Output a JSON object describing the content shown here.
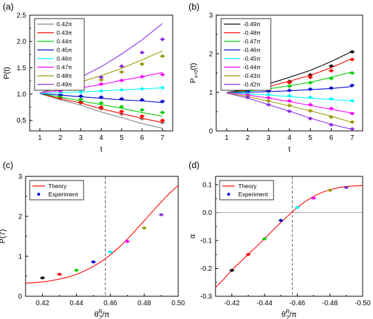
{
  "chart_data": [
    {
      "type": "line",
      "panel_label": "(a)",
      "xlabel": "t",
      "ylabel": "P(t)",
      "xlim": [
        0.5,
        7.5
      ],
      "ylim": [
        0.3,
        2.5
      ],
      "xticks": [
        "1",
        "2",
        "3",
        "4",
        "5",
        "6",
        "7"
      ],
      "yticks": [
        "0.5",
        "1.0",
        "1.5",
        "2.0",
        "2.5"
      ],
      "legend_position": "top-left",
      "x": [
        1,
        2,
        3,
        4,
        5,
        6,
        7
      ],
      "series": [
        {
          "name": "0.42π",
          "color": "#7f7f7f",
          "values": [
            1.01,
            0.89,
            0.79,
            0.66,
            0.55,
            0.44,
            0.35
          ],
          "points": [
            1.01,
            0.92,
            0.83,
            0.72,
            0.62,
            0.53,
            0.46
          ]
        },
        {
          "name": "0.43π",
          "color": "#ff0000",
          "values": [
            1.01,
            0.91,
            0.83,
            0.72,
            0.63,
            0.54,
            0.46
          ],
          "points": [
            1.01,
            0.93,
            0.85,
            0.75,
            0.67,
            0.58,
            0.5
          ]
        },
        {
          "name": "0.44π",
          "color": "#00cc00",
          "values": [
            1.01,
            0.94,
            0.87,
            0.8,
            0.73,
            0.65,
            0.58
          ],
          "points": [
            1.01,
            0.96,
            0.9,
            0.83,
            0.76,
            0.7,
            0.65
          ]
        },
        {
          "name": "0.45π",
          "color": "#0000cc",
          "values": [
            1.01,
            0.98,
            0.95,
            0.92,
            0.89,
            0.87,
            0.84
          ],
          "points": [
            1.01,
            0.99,
            0.96,
            0.94,
            0.91,
            0.89,
            0.86
          ]
        },
        {
          "name": "0.46π",
          "color": "#00ffff",
          "values": [
            1.01,
            1.03,
            1.04,
            1.06,
            1.08,
            1.1,
            1.12
          ],
          "points": [
            1.01,
            1.03,
            1.04,
            1.06,
            1.08,
            1.1,
            1.12
          ]
        },
        {
          "name": "0.47π",
          "color": "#ff00ff",
          "values": [
            1.02,
            1.07,
            1.12,
            1.18,
            1.26,
            1.33,
            1.41
          ],
          "points": [
            1.02,
            1.06,
            1.13,
            1.19,
            1.26,
            1.33,
            1.37
          ]
        },
        {
          "name": "0.48π",
          "color": "#999900",
          "values": [
            1.02,
            1.12,
            1.23,
            1.35,
            1.49,
            1.65,
            1.82
          ],
          "points": [
            1.02,
            1.1,
            1.18,
            1.27,
            1.42,
            1.57,
            1.72
          ]
        },
        {
          "name": "0.49π",
          "color": "#8a2be2",
          "values": [
            1.02,
            1.15,
            1.32,
            1.52,
            1.76,
            2.03,
            2.34
          ],
          "points": [
            1.02,
            1.1,
            1.2,
            1.32,
            1.53,
            1.79,
            2.04
          ]
        }
      ]
    },
    {
      "type": "line",
      "panel_label": "(b)",
      "xlabel": "t",
      "ylabel": "P",
      "ylabel_sub": "x=0",
      "ylabel_suffix": "(t)",
      "xlim": [
        0.5,
        7.5
      ],
      "ylim": [
        0,
        3
      ],
      "xticks": [
        "1",
        "2",
        "3",
        "4",
        "5",
        "6",
        "7"
      ],
      "yticks": [
        "0",
        "1",
        "2",
        "3"
      ],
      "legend_position": "top-left",
      "x": [
        1,
        2,
        3,
        4,
        5,
        6,
        7
      ],
      "series": [
        {
          "name": "-0.49π",
          "color": "#000000",
          "values": [
            1.0,
            1.08,
            1.22,
            1.39,
            1.57,
            1.8,
            2.06
          ],
          "points": [
            1.0,
            1.07,
            1.14,
            1.28,
            1.45,
            1.68,
            2.05
          ]
        },
        {
          "name": "-0.48π",
          "color": "#ff0000",
          "values": [
            1.0,
            1.05,
            1.15,
            1.29,
            1.44,
            1.64,
            1.88
          ],
          "points": [
            1.0,
            1.04,
            1.12,
            1.25,
            1.39,
            1.56,
            1.85
          ]
        },
        {
          "name": "-0.47π",
          "color": "#00cc00",
          "values": [
            1.0,
            1.03,
            1.09,
            1.17,
            1.26,
            1.39,
            1.53
          ],
          "points": [
            1.0,
            1.03,
            1.08,
            1.16,
            1.25,
            1.36,
            1.5
          ]
        },
        {
          "name": "-0.46π",
          "color": "#0000cc",
          "values": [
            1.0,
            1.0,
            1.02,
            1.04,
            1.07,
            1.1,
            1.15
          ],
          "points": [
            1.0,
            1.01,
            1.03,
            1.05,
            1.08,
            1.11,
            1.18
          ]
        },
        {
          "name": "-0.45π",
          "color": "#00ffff",
          "values": [
            1.0,
            0.96,
            0.93,
            0.89,
            0.85,
            0.81,
            0.78
          ],
          "points": [
            1.0,
            0.97,
            0.94,
            0.91,
            0.87,
            0.83,
            0.78
          ]
        },
        {
          "name": "-0.44π",
          "color": "#ff00ff",
          "values": [
            1.0,
            0.93,
            0.85,
            0.76,
            0.66,
            0.56,
            0.46
          ],
          "points": [
            1.0,
            0.94,
            0.86,
            0.78,
            0.68,
            0.58,
            0.45
          ]
        },
        {
          "name": "-0.43π",
          "color": "#999900",
          "values": [
            0.99,
            0.89,
            0.77,
            0.65,
            0.52,
            0.38,
            0.22
          ],
          "points": [
            1.0,
            0.9,
            0.78,
            0.66,
            0.52,
            0.36,
            0.23
          ]
        },
        {
          "name": "-0.42π",
          "color": "#8a2be2",
          "values": [
            0.98,
            0.85,
            0.68,
            0.51,
            0.33,
            0.17,
            0.04
          ],
          "points": [
            0.99,
            0.87,
            0.68,
            0.51,
            0.32,
            0.16,
            0.05
          ]
        }
      ]
    },
    {
      "type": "scatter",
      "panel_label": "(c)",
      "xlabel": "θ",
      "xlabel_sub": "2",
      "xlabel_sup": "R",
      "xlabel_suffix": "/π",
      "ylabel": "P(7)",
      "xlim": [
        0.41,
        0.5
      ],
      "ylim": [
        0,
        3
      ],
      "xticks": [
        "0.42",
        "0.44",
        "0.46",
        "0.48",
        "0.50"
      ],
      "yticks": [
        "0",
        "1",
        "2",
        "3"
      ],
      "dashed_vline": 0.457,
      "legend_position": "top-left",
      "theory": {
        "name": "Theory",
        "color": "#ff0000",
        "x": [
          0.41,
          0.415,
          0.42,
          0.425,
          0.43,
          0.435,
          0.44,
          0.445,
          0.45,
          0.455,
          0.46,
          0.465,
          0.47,
          0.475,
          0.48,
          0.485,
          0.49,
          0.495,
          0.5
        ],
        "y": [
          0.33,
          0.34,
          0.36,
          0.39,
          0.43,
          0.48,
          0.55,
          0.64,
          0.75,
          0.88,
          1.04,
          1.22,
          1.43,
          1.66,
          1.89,
          2.13,
          2.36,
          2.58,
          2.77
        ]
      },
      "experiment": {
        "name": "Experiment",
        "x": [
          0.42,
          0.43,
          0.44,
          0.45,
          0.46,
          0.47,
          0.48,
          0.49
        ],
        "y": [
          0.46,
          0.55,
          0.65,
          0.86,
          1.11,
          1.37,
          1.71,
          2.04
        ],
        "colors": [
          "#000000",
          "#ff0000",
          "#00cc00",
          "#0000cc",
          "#00ffff",
          "#ff00ff",
          "#999900",
          "#8a2be2"
        ]
      }
    },
    {
      "type": "scatter",
      "panel_label": "(d)",
      "xlabel": "θ",
      "xlabel_sub": "2",
      "xlabel_sup": "R",
      "xlabel_suffix": "/π",
      "ylabel": "α",
      "xlim": [
        -0.41,
        -0.5
      ],
      "ylim": [
        -0.3,
        0.13
      ],
      "xticks": [
        "-0.42",
        "-0.44",
        "-0.46",
        "-0.48",
        "-0.50"
      ],
      "yticks": [
        "-0.3",
        "-0.2",
        "-0.1",
        "0.0",
        "0.1"
      ],
      "dashed_vline": -0.457,
      "hline": 0.0,
      "legend_position": "top-left",
      "theory": {
        "name": "Theory",
        "color": "#ff0000",
        "x": [
          -0.41,
          -0.415,
          -0.42,
          -0.425,
          -0.43,
          -0.435,
          -0.44,
          -0.445,
          -0.45,
          -0.455,
          -0.46,
          -0.465,
          -0.47,
          -0.475,
          -0.48,
          -0.485,
          -0.49,
          -0.495,
          -0.5
        ],
        "y": [
          -0.268,
          -0.239,
          -0.206,
          -0.178,
          -0.15,
          -0.122,
          -0.093,
          -0.064,
          -0.035,
          -0.008,
          0.018,
          0.04,
          0.058,
          0.072,
          0.082,
          0.089,
          0.094,
          0.096,
          0.097
        ]
      },
      "experiment": {
        "name": "Experiment",
        "x": [
          -0.42,
          -0.43,
          -0.44,
          -0.45,
          -0.46,
          -0.47,
          -0.48,
          -0.49
        ],
        "y": [
          -0.207,
          -0.15,
          -0.094,
          -0.028,
          0.018,
          0.052,
          0.08,
          0.09
        ],
        "colors": [
          "#000000",
          "#ff0000",
          "#00cc00",
          "#0000cc",
          "#00ffff",
          "#ff00ff",
          "#999900",
          "#8a2be2"
        ]
      }
    }
  ]
}
